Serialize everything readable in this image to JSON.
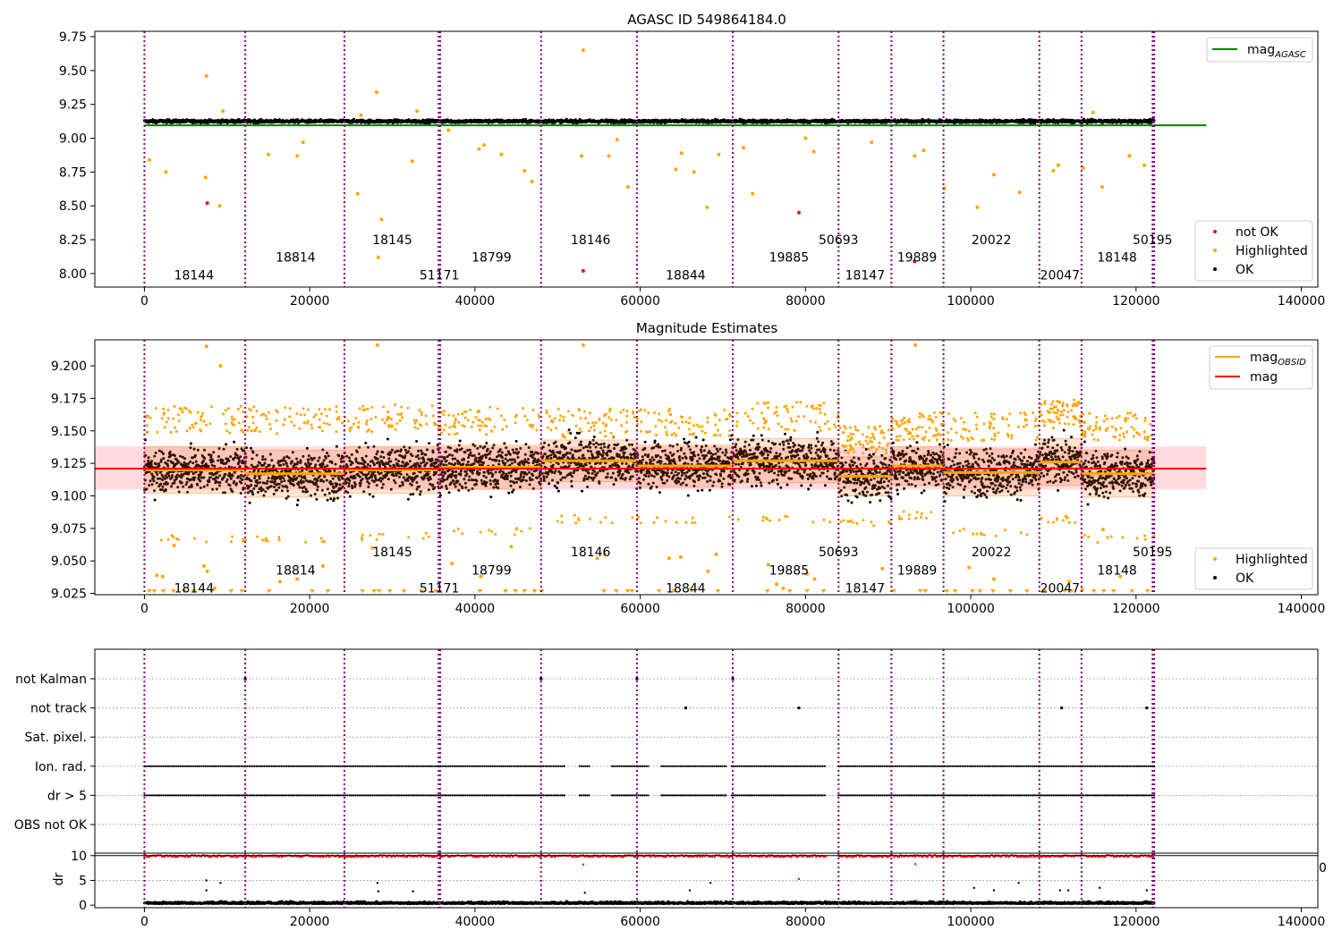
{
  "chart_data": [
    {
      "type": "scatter",
      "title": "AGASC ID 549864184.0",
      "xlim": [
        -6000,
        142000
      ],
      "ylim": [
        7.9,
        9.79
      ],
      "xticks": [
        0,
        20000,
        40000,
        60000,
        80000,
        100000,
        120000,
        140000
      ],
      "xtick_labels": [
        "0",
        "20000",
        "40000",
        "60000",
        "80000",
        "100000",
        "120000",
        "140000"
      ],
      "yticks": [
        8.0,
        8.25,
        8.5,
        8.75,
        9.0,
        9.25,
        9.5,
        9.75
      ],
      "ytick_labels": [
        "8.00",
        "8.25",
        "8.50",
        "8.75",
        "9.00",
        "9.25",
        "9.50",
        "9.75"
      ],
      "legends": [
        {
          "location": "upper right",
          "entries": [
            {
              "label": "mag",
              "subscript": "AGASC",
              "marker": "line",
              "color": "#008000"
            }
          ]
        },
        {
          "location": "lower right",
          "entries": [
            {
              "label": "not OK",
              "marker": "dot",
              "color": "#ff0000"
            },
            {
              "label": "Highlighted",
              "marker": "dot",
              "color": "#ffa500"
            },
            {
              "label": "OK",
              "marker": "dot",
              "color": "#000000"
            }
          ]
        }
      ],
      "reference_lines": [
        {
          "name": "mag_AGASC",
          "y": 9.095,
          "x_range": [
            0,
            128500
          ],
          "color": "#008000"
        }
      ],
      "ok_band": {
        "y_low": 9.08,
        "y_high": 9.16
      },
      "highlighted_points": [
        [
          600,
          8.84
        ],
        [
          2600,
          8.75
        ],
        [
          7500,
          9.46
        ],
        [
          7400,
          8.71
        ],
        [
          9100,
          8.5
        ],
        [
          9500,
          9.2
        ],
        [
          15000,
          8.88
        ],
        [
          18500,
          8.87
        ],
        [
          19200,
          8.97
        ],
        [
          25800,
          8.59
        ],
        [
          26200,
          9.17
        ],
        [
          28100,
          9.34
        ],
        [
          28300,
          8.12
        ],
        [
          28700,
          8.4
        ],
        [
          32400,
          8.83
        ],
        [
          33000,
          9.2
        ],
        [
          36800,
          9.06
        ],
        [
          40500,
          8.92
        ],
        [
          41100,
          8.95
        ],
        [
          43200,
          8.88
        ],
        [
          46000,
          8.76
        ],
        [
          46900,
          8.68
        ],
        [
          52900,
          8.87
        ],
        [
          53100,
          9.65
        ],
        [
          56200,
          8.87
        ],
        [
          57200,
          8.99
        ],
        [
          58500,
          8.64
        ],
        [
          64300,
          8.77
        ],
        [
          65000,
          8.89
        ],
        [
          66500,
          8.75
        ],
        [
          68100,
          8.49
        ],
        [
          69500,
          8.88
        ],
        [
          72500,
          8.93
        ],
        [
          73600,
          8.59
        ],
        [
          80000,
          9.0
        ],
        [
          81000,
          8.9
        ],
        [
          88000,
          8.97
        ],
        [
          93200,
          8.87
        ],
        [
          94300,
          8.91
        ],
        [
          96800,
          8.63
        ],
        [
          100800,
          8.49
        ],
        [
          102800,
          8.73
        ],
        [
          105900,
          8.6
        ],
        [
          110000,
          8.76
        ],
        [
          110600,
          8.8
        ],
        [
          113600,
          8.78
        ],
        [
          114800,
          9.19
        ],
        [
          115900,
          8.64
        ],
        [
          119200,
          8.87
        ],
        [
          121000,
          8.8
        ]
      ],
      "not_ok_points": [
        [
          7600,
          8.52
        ],
        [
          79200,
          8.45
        ],
        [
          53100,
          8.02
        ],
        [
          93200,
          8.09
        ]
      ],
      "obsid_boundaries": [
        0,
        12200,
        24200,
        35600,
        35800,
        48000,
        59600,
        71200,
        84000,
        90400,
        96700,
        108300,
        113400,
        122000,
        122200
      ],
      "obsid_labels": [
        {
          "text": "18144",
          "x": 6000,
          "y": 7.99
        },
        {
          "text": "18814",
          "x": 18300,
          "y": 8.12
        },
        {
          "text": "18145",
          "x": 30000,
          "y": 8.25
        },
        {
          "text": "51171",
          "x": 35700,
          "y": 7.99
        },
        {
          "text": "18799",
          "x": 42000,
          "y": 8.12
        },
        {
          "text": "18146",
          "x": 54000,
          "y": 8.25
        },
        {
          "text": "18844",
          "x": 65500,
          "y": 7.99
        },
        {
          "text": "19885",
          "x": 78000,
          "y": 8.12
        },
        {
          "text": "50693",
          "x": 84000,
          "y": 8.25
        },
        {
          "text": "18147",
          "x": 87200,
          "y": 7.99
        },
        {
          "text": "19889",
          "x": 93500,
          "y": 8.12
        },
        {
          "text": "20022",
          "x": 102500,
          "y": 8.25
        },
        {
          "text": "20047",
          "x": 110800,
          "y": 7.99
        },
        {
          "text": "18148",
          "x": 117700,
          "y": 8.12
        },
        {
          "text": "50195",
          "x": 122000,
          "y": 8.25
        }
      ]
    },
    {
      "type": "scatter",
      "title": "Magnitude Estimates",
      "xlim": [
        -6000,
        142000
      ],
      "ylim": [
        9.024,
        9.22
      ],
      "xticks": [
        0,
        20000,
        40000,
        60000,
        80000,
        100000,
        120000,
        140000
      ],
      "xtick_labels": [
        "0",
        "20000",
        "40000",
        "60000",
        "80000",
        "100000",
        "120000",
        "140000"
      ],
      "yticks": [
        9.025,
        9.05,
        9.075,
        9.1,
        9.125,
        9.15,
        9.175,
        9.2
      ],
      "ytick_labels": [
        "9.025",
        "9.050",
        "9.075",
        "9.100",
        "9.125",
        "9.150",
        "9.175",
        "9.200"
      ],
      "legends": [
        {
          "location": "upper right",
          "entries": [
            {
              "label": "mag",
              "subscript": "OBSID",
              "marker": "line",
              "color": "#ffa500"
            },
            {
              "label": "mag",
              "marker": "line",
              "color": "#ff0000"
            }
          ]
        },
        {
          "location": "lower right",
          "entries": [
            {
              "label": "Highlighted",
              "marker": "dot",
              "color": "#ffa500"
            },
            {
              "label": "OK",
              "marker": "dot",
              "color": "#000000"
            }
          ]
        }
      ],
      "mag": {
        "value": 9.121,
        "band": [
          9.105,
          9.138
        ],
        "x_range": [
          -6000,
          128500
        ],
        "color": "#ff0000"
      },
      "obsid_segments": [
        {
          "x0": 0,
          "x1": 12200,
          "mag": 9.12,
          "sigma": 0.018,
          "lo": 9.07,
          "hi": 9.165
        },
        {
          "x0": 12200,
          "x1": 24200,
          "mag": 9.117,
          "sigma": 0.018,
          "lo": 9.07,
          "hi": 9.165
        },
        {
          "x0": 24200,
          "x1": 35700,
          "mag": 9.12,
          "sigma": 0.018,
          "lo": 9.072,
          "hi": 9.167
        },
        {
          "x0": 35700,
          "x1": 48000,
          "mag": 9.122,
          "sigma": 0.017,
          "lo": 9.075,
          "hi": 9.165
        },
        {
          "x0": 48000,
          "x1": 59600,
          "mag": 9.127,
          "sigma": 0.016,
          "lo": 9.085,
          "hi": 9.163
        },
        {
          "x0": 59600,
          "x1": 71200,
          "mag": 9.123,
          "sigma": 0.016,
          "lo": 9.085,
          "hi": 9.163
        },
        {
          "x0": 71200,
          "x1": 84000,
          "mag": 9.127,
          "sigma": 0.017,
          "lo": 9.085,
          "hi": 9.168
        },
        {
          "x0": 84000,
          "x1": 90400,
          "mag": 9.115,
          "sigma": 0.015,
          "lo": 9.082,
          "hi": 9.15
        },
        {
          "x0": 90400,
          "x1": 96700,
          "mag": 9.123,
          "sigma": 0.015,
          "lo": 9.088,
          "hi": 9.16
        },
        {
          "x0": 96700,
          "x1": 108300,
          "mag": 9.118,
          "sigma": 0.018,
          "lo": 9.075,
          "hi": 9.16
        },
        {
          "x0": 108300,
          "x1": 113400,
          "mag": 9.126,
          "sigma": 0.018,
          "lo": 9.085,
          "hi": 9.17
        },
        {
          "x0": 113400,
          "x1": 122200,
          "mag": 9.117,
          "sigma": 0.018,
          "lo": 9.07,
          "hi": 9.16
        }
      ],
      "highlighted_points": [
        [
          7500,
          9.215
        ],
        [
          9200,
          9.2
        ],
        [
          28200,
          9.216
        ],
        [
          53100,
          9.216
        ],
        [
          93300,
          9.216
        ],
        [
          3600,
          9.062
        ],
        [
          1500,
          9.039
        ],
        [
          2200,
          9.038
        ],
        [
          7200,
          9.046
        ],
        [
          7600,
          9.042
        ],
        [
          8500,
          9.029
        ],
        [
          16400,
          9.034
        ],
        [
          18500,
          9.036
        ],
        [
          21600,
          9.046
        ],
        [
          27600,
          9.06
        ],
        [
          37200,
          9.048
        ],
        [
          40700,
          9.038
        ],
        [
          44400,
          9.061
        ],
        [
          54800,
          9.052
        ],
        [
          55700,
          9.055
        ],
        [
          63500,
          9.052
        ],
        [
          64900,
          9.053
        ],
        [
          68200,
          9.042
        ],
        [
          69200,
          9.055
        ],
        [
          75500,
          9.047
        ],
        [
          76500,
          9.032
        ],
        [
          77300,
          9.029
        ],
        [
          80200,
          9.04
        ],
        [
          81100,
          9.036
        ],
        [
          89300,
          9.044
        ],
        [
          99800,
          9.045
        ],
        [
          102800,
          9.036
        ],
        [
          111900,
          9.034
        ],
        [
          113500,
          9.028
        ],
        [
          116000,
          9.074
        ],
        [
          118100,
          9.038
        ]
      ],
      "clipped_points_x": [
        600,
        1200,
        2300,
        3500,
        4800,
        6000,
        8200,
        10500,
        11800,
        15100,
        20300,
        22200,
        26400,
        27800,
        28400,
        29700,
        31400,
        33500,
        35300,
        40600,
        43700,
        44900,
        46000,
        47200,
        48100,
        55600,
        57100,
        58500,
        59000,
        62300,
        64100,
        66200,
        69400,
        75400,
        78100,
        80200,
        82200,
        88200,
        90700,
        93900,
        94500,
        97100,
        98100,
        100200,
        101100,
        102700,
        104800,
        106800,
        108900,
        111300,
        112200,
        114900,
        116100,
        117300,
        119500,
        121400
      ],
      "obsid_labels": [
        {
          "text": "18144",
          "x": 6000,
          "y": 9.029
        },
        {
          "text": "18814",
          "x": 18300,
          "y": 9.043
        },
        {
          "text": "18145",
          "x": 30000,
          "y": 9.057
        },
        {
          "text": "51171",
          "x": 35700,
          "y": 9.029
        },
        {
          "text": "18799",
          "x": 42000,
          "y": 9.043
        },
        {
          "text": "18146",
          "x": 54000,
          "y": 9.057
        },
        {
          "text": "18844",
          "x": 65500,
          "y": 9.029
        },
        {
          "text": "19885",
          "x": 78000,
          "y": 9.043
        },
        {
          "text": "50693",
          "x": 84000,
          "y": 9.057
        },
        {
          "text": "18147",
          "x": 87200,
          "y": 9.029
        },
        {
          "text": "19889",
          "x": 93500,
          "y": 9.043
        },
        {
          "text": "20022",
          "x": 102500,
          "y": 9.057
        },
        {
          "text": "20047",
          "x": 110800,
          "y": 9.029
        },
        {
          "text": "18148",
          "x": 117700,
          "y": 9.043
        },
        {
          "text": "50195",
          "x": 122000,
          "y": 9.057
        }
      ]
    },
    {
      "type": "scatter",
      "xlim": [
        -6000,
        142000
      ],
      "categories": [
        "not Kalman",
        "not track",
        "Sat. pixel.",
        "Ion. rad.",
        "dr > 5",
        "OBS not OK"
      ],
      "flag_points": [
        {
          "category": "not Kalman",
          "x": [
            12200,
            48000,
            59600,
            71200
          ]
        },
        {
          "category": "not track",
          "x": [
            65500,
            79200,
            111000,
            121300
          ]
        },
        {
          "category": "Ion. rad.",
          "ranges": [
            [
              0,
              82500
            ],
            [
              84000,
              122200
            ]
          ],
          "gaps": [
            [
              51000,
              52500
            ],
            [
              54000,
              56500
            ],
            [
              61000,
              62500
            ],
            [
              70500,
              71000
            ],
            [
              82500,
              84000
            ]
          ]
        },
        {
          "category": "dr > 5",
          "ranges": [
            [
              0,
              82500
            ],
            [
              84000,
              122200
            ]
          ],
          "gaps": [
            [
              51000,
              52500
            ],
            [
              54000,
              56500
            ],
            [
              61000,
              62500
            ],
            [
              70500,
              71000
            ],
            [
              82500,
              84000
            ]
          ]
        }
      ]
    },
    {
      "type": "scatter",
      "ylabel": "dr",
      "xlim": [
        -6000,
        142000
      ],
      "ylim": [
        -0.5,
        10.5
      ],
      "xticks": [
        0,
        20000,
        40000,
        60000,
        80000,
        100000,
        120000,
        140000
      ],
      "xtick_labels": [
        "0",
        "20000",
        "40000",
        "60000",
        "80000",
        "100000",
        "120000",
        "140000"
      ],
      "yticks": [
        0,
        5,
        10
      ],
      "ytick_labels": [
        "0",
        "5",
        "10"
      ],
      "threshold_line": {
        "y": 10
      },
      "outlier_points": [
        [
          7500,
          5
        ],
        [
          7500,
          3
        ],
        [
          9200,
          4.5
        ],
        [
          28200,
          4.5
        ],
        [
          28300,
          2.8
        ],
        [
          32500,
          2.8
        ],
        [
          53100,
          8.2
        ],
        [
          53300,
          2.5
        ],
        [
          66000,
          3
        ],
        [
          68500,
          4.5
        ],
        [
          79200,
          5.3
        ],
        [
          93300,
          8.3
        ],
        [
          100400,
          3.5
        ],
        [
          102800,
          3
        ],
        [
          105800,
          4.5
        ],
        [
          110800,
          3
        ],
        [
          111800,
          3
        ],
        [
          115600,
          3.5
        ],
        [
          121300,
          3
        ]
      ],
      "clipped_edge_label": "0"
    }
  ]
}
